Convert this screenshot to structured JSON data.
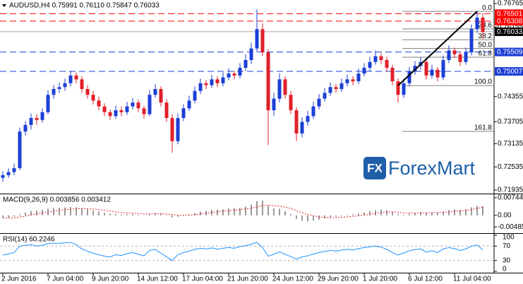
{
  "chart_data": {
    "type": "candlestick",
    "title": "AUDUSD,H4  0.75991 0.76110 0.75847 0.76033",
    "categories": [
      "2 Jun 2016",
      null,
      null,
      null,
      null,
      null,
      null,
      null,
      "7 Jun 04:00",
      null,
      null,
      null,
      null,
      null,
      null,
      null,
      "9 Jun 20:00",
      null,
      null,
      null,
      null,
      null,
      null,
      null,
      "14 Jun 12:00",
      null,
      null,
      null,
      null,
      null,
      null,
      null,
      "17 Jun 04:00",
      null,
      null,
      null,
      null,
      null,
      null,
      null,
      "21 Jun 20:00",
      null,
      null,
      null,
      null,
      null,
      null,
      null,
      "24 Jun 12:00",
      null,
      null,
      null,
      null,
      null,
      null,
      null,
      "29 Jun 20:00",
      null,
      null,
      null,
      null,
      null,
      null,
      null,
      "1 Jul 20:00",
      null,
      null,
      null,
      null,
      null,
      null,
      null,
      "6 Jul 12:00",
      null,
      null,
      null,
      null,
      null,
      null,
      null,
      "11 Jul 04:00",
      null,
      null,
      null,
      null,
      null
    ],
    "candles": [
      [
        0.7225,
        0.7242,
        0.7215,
        0.7232
      ],
      [
        0.7232,
        0.725,
        0.7225,
        0.724
      ],
      [
        0.724,
        0.7262,
        0.7232,
        0.725
      ],
      [
        0.725,
        0.7355,
        0.7245,
        0.7345
      ],
      [
        0.7345,
        0.7372,
        0.7335,
        0.7362
      ],
      [
        0.7362,
        0.7392,
        0.735,
        0.738
      ],
      [
        0.738,
        0.739,
        0.7362,
        0.7375
      ],
      [
        0.7375,
        0.7405,
        0.7368,
        0.7395
      ],
      [
        0.7395,
        0.7452,
        0.739,
        0.744
      ],
      [
        0.744,
        0.7465,
        0.743,
        0.7455
      ],
      [
        0.7455,
        0.7472,
        0.7445,
        0.746
      ],
      [
        0.746,
        0.7482,
        0.745,
        0.747
      ],
      [
        0.747,
        0.7502,
        0.7462,
        0.749
      ],
      [
        0.749,
        0.7498,
        0.747,
        0.748
      ],
      [
        0.748,
        0.7488,
        0.7445,
        0.7455
      ],
      [
        0.7455,
        0.7465,
        0.743,
        0.744
      ],
      [
        0.744,
        0.745,
        0.7415,
        0.7425
      ],
      [
        0.7425,
        0.7435,
        0.74,
        0.741
      ],
      [
        0.741,
        0.7418,
        0.7385,
        0.7395
      ],
      [
        0.7395,
        0.7402,
        0.7375,
        0.7385
      ],
      [
        0.7385,
        0.7412,
        0.7378,
        0.74
      ],
      [
        0.74,
        0.741,
        0.7385,
        0.7395
      ],
      [
        0.7395,
        0.7422,
        0.7388,
        0.741
      ],
      [
        0.741,
        0.7432,
        0.7402,
        0.742
      ],
      [
        0.742,
        0.7428,
        0.7395,
        0.7405
      ],
      [
        0.7405,
        0.7412,
        0.7378,
        0.739
      ],
      [
        0.739,
        0.7452,
        0.7385,
        0.744
      ],
      [
        0.744,
        0.7468,
        0.7432,
        0.7455
      ],
      [
        0.7455,
        0.7462,
        0.741,
        0.742
      ],
      [
        0.742,
        0.7428,
        0.737,
        0.738
      ],
      [
        0.738,
        0.739,
        0.729,
        0.732
      ],
      [
        0.732,
        0.7392,
        0.7312,
        0.738
      ],
      [
        0.738,
        0.7415,
        0.7372,
        0.7405
      ],
      [
        0.7405,
        0.7438,
        0.7398,
        0.7425
      ],
      [
        0.7425,
        0.7462,
        0.7418,
        0.745
      ],
      [
        0.745,
        0.7482,
        0.7442,
        0.747
      ],
      [
        0.747,
        0.7478,
        0.7455,
        0.7465
      ],
      [
        0.7465,
        0.7492,
        0.7458,
        0.748
      ],
      [
        0.748,
        0.7488,
        0.746,
        0.747
      ],
      [
        0.747,
        0.7498,
        0.7462,
        0.7485
      ],
      [
        0.7485,
        0.7508,
        0.7478,
        0.7495
      ],
      [
        0.7495,
        0.7502,
        0.748,
        0.749
      ],
      [
        0.749,
        0.7522,
        0.7482,
        0.751
      ],
      [
        0.751,
        0.7545,
        0.7502,
        0.753
      ],
      [
        0.753,
        0.7575,
        0.752,
        0.756
      ],
      [
        0.756,
        0.7662,
        0.7552,
        0.761
      ],
      [
        0.761,
        0.7625,
        0.754,
        0.755
      ],
      [
        0.755,
        0.7558,
        0.731,
        0.74
      ],
      [
        0.74,
        0.7445,
        0.7385,
        0.743
      ],
      [
        0.743,
        0.7495,
        0.742,
        0.748
      ],
      [
        0.748,
        0.7488,
        0.743,
        0.744
      ],
      [
        0.744,
        0.745,
        0.739,
        0.74
      ],
      [
        0.74,
        0.7408,
        0.732,
        0.734
      ],
      [
        0.734,
        0.7382,
        0.733,
        0.737
      ],
      [
        0.737,
        0.7398,
        0.736,
        0.7385
      ],
      [
        0.7385,
        0.7422,
        0.7378,
        0.741
      ],
      [
        0.741,
        0.7442,
        0.7402,
        0.743
      ],
      [
        0.743,
        0.7458,
        0.7422,
        0.7445
      ],
      [
        0.7445,
        0.7472,
        0.7438,
        0.746
      ],
      [
        0.746,
        0.7468,
        0.7445,
        0.7455
      ],
      [
        0.7455,
        0.7482,
        0.7448,
        0.747
      ],
      [
        0.747,
        0.7492,
        0.7462,
        0.748
      ],
      [
        0.748,
        0.7488,
        0.7465,
        0.7475
      ],
      [
        0.7475,
        0.7508,
        0.7468,
        0.7495
      ],
      [
        0.7495,
        0.7522,
        0.7488,
        0.751
      ],
      [
        0.751,
        0.7538,
        0.7502,
        0.7525
      ],
      [
        0.7525,
        0.7555,
        0.7518,
        0.754
      ],
      [
        0.754,
        0.7548,
        0.752,
        0.753
      ],
      [
        0.753,
        0.7538,
        0.75,
        0.751
      ],
      [
        0.751,
        0.7518,
        0.7465,
        0.7475
      ],
      [
        0.7475,
        0.7482,
        0.742,
        0.744
      ],
      [
        0.744,
        0.7482,
        0.7432,
        0.747
      ],
      [
        0.747,
        0.7512,
        0.7462,
        0.75
      ],
      [
        0.75,
        0.7528,
        0.7492,
        0.7515
      ],
      [
        0.7515,
        0.7538,
        0.7505,
        0.7525
      ],
      [
        0.7525,
        0.7532,
        0.748,
        0.749
      ],
      [
        0.749,
        0.7518,
        0.7482,
        0.7505
      ],
      [
        0.7505,
        0.7512,
        0.7475,
        0.7485
      ],
      [
        0.7485,
        0.7542,
        0.7478,
        0.753
      ],
      [
        0.753,
        0.7568,
        0.7522,
        0.7555
      ],
      [
        0.7555,
        0.7562,
        0.7535,
        0.7545
      ],
      [
        0.7545,
        0.7552,
        0.7515,
        0.7525
      ],
      [
        0.7525,
        0.7562,
        0.7518,
        0.755
      ],
      [
        0.755,
        0.7622,
        0.7542,
        0.761
      ],
      [
        0.761,
        0.7655,
        0.76,
        0.764
      ],
      [
        0.764,
        0.7651,
        0.7585,
        0.7603
      ]
    ],
    "up_color": "#1c3fd6",
    "down_color": "#e0202a",
    "ylim": [
      0.7188,
      0.768
    ],
    "yticks": [
      0.76765,
      0.76155,
      0.74355,
      0.73705,
      0.73135,
      0.72535,
      0.71935
    ],
    "levels": [
      {
        "value": 0.76501,
        "color": "#ff0000",
        "style": "dashed"
      },
      {
        "value": 0.76308,
        "color": "#ff0000",
        "style": "dashed"
      },
      {
        "value": 0.76033,
        "color": "#000000",
        "style": "solid"
      },
      {
        "value": 0.75509,
        "color": "#1c3fd6",
        "style": "dashed"
      },
      {
        "value": 0.75007,
        "color": "#1c3fd6",
        "style": "dashed"
      }
    ],
    "fibonacci": {
      "high": 0.7656,
      "low": 0.7464,
      "start": 70,
      "levels": [
        {
          "value": 0,
          "label": "0.0"
        },
        23.6,
        38.2,
        {
          "value": 50,
          "label": "50.0"
        },
        61.8,
        {
          "value": 100,
          "label": "100.0"
        },
        161.8
      ]
    },
    "trendline": {
      "x": [
        70,
        84
      ],
      "y": [
        0.7464,
        0.7656
      ]
    },
    "watermark": {
      "icon": "FX",
      "text": "ForexMart"
    },
    "macd": {
      "title": "MACD(9,26,9) 0.003856 0.003412",
      "ylim": [
        -0.0069,
        0.0086
      ],
      "yticks": [
        0.007445,
        {
          "value": 0,
          "label": "0.00"
        },
        -0.004855
      ],
      "hist_color": "#9a9a9a",
      "signal_color": "#e0202a",
      "histogram": [
        -0.001,
        -0.0008,
        -0.0005,
        0.0005,
        0.0012,
        0.0018,
        0.002,
        0.0023,
        0.0028,
        0.0031,
        0.0032,
        0.0033,
        0.0035,
        0.0034,
        0.003,
        0.0026,
        0.0021,
        0.0016,
        0.0011,
        0.0007,
        0.0006,
        0.0004,
        0.0004,
        0.0005,
        0.0003,
        0.0001,
        0.0006,
        0.001,
        0.0008,
        0.0002,
        -0.0008,
        -0.0006,
        -0.0002,
        0.0004,
        0.001,
        0.0016,
        0.0019,
        0.0023,
        0.0024,
        0.0026,
        0.0029,
        0.0029,
        0.0032,
        0.0037,
        0.0045,
        0.006,
        0.0062,
        0.004,
        0.003,
        0.0028,
        0.0018,
        0.0005,
        -0.0015,
        -0.0022,
        -0.0025,
        -0.0022,
        -0.0018,
        -0.0013,
        -0.0008,
        -0.0005,
        -0.0002,
        0.0002,
        0.0004,
        0.0008,
        0.0012,
        0.0017,
        0.0022,
        0.0024,
        0.0022,
        0.0015,
        0.0005,
        0.0003,
        0.0006,
        0.001,
        0.0014,
        0.0012,
        0.0013,
        0.0011,
        0.0016,
        0.0022,
        0.0025,
        0.0024,
        0.0027,
        0.0034,
        0.004,
        0.0039
      ],
      "signal": [
        -0.0012,
        -0.0011,
        -0.001,
        -0.0007,
        -0.0003,
        0.0002,
        0.0006,
        0.001,
        0.0014,
        0.0018,
        0.0021,
        0.0024,
        0.0026,
        0.0028,
        0.0029,
        0.0028,
        0.0027,
        0.0024,
        0.0021,
        0.0018,
        0.0015,
        0.0012,
        0.001,
        0.0009,
        0.0008,
        0.0006,
        0.0006,
        0.0007,
        0.0007,
        0.0006,
        0.0003,
        0.0001,
        0,
        0.0001,
        0.0003,
        0.0006,
        0.0009,
        0.0012,
        0.0015,
        0.0018,
        0.002,
        0.0022,
        0.0024,
        0.0027,
        0.003,
        0.0036,
        0.0041,
        0.0043,
        0.0041,
        0.0039,
        0.0035,
        0.0029,
        0.002,
        0.0011,
        0.0004,
        -0.0002,
        -0.0006,
        -0.0009,
        -0.001,
        -0.0009,
        -0.0008,
        -0.0006,
        -0.0004,
        -0.0002,
        0.0001,
        0.0004,
        0.0008,
        0.0011,
        0.0014,
        0.0015,
        0.0013,
        0.0011,
        0.001,
        0.001,
        0.0011,
        0.0011,
        0.0012,
        0.0012,
        0.0013,
        0.0015,
        0.0017,
        0.0019,
        0.0021,
        0.0024,
        0.003,
        0.0034
      ]
    },
    "rsi": {
      "title": "RSI(14) 60.2246",
      "ylim": [
        0,
        100
      ],
      "yticks": [
        100,
        70,
        30,
        0
      ],
      "color": "#1e90ff",
      "values": [
        45,
        48,
        52,
        70,
        72,
        74,
        70,
        72,
        77,
        78,
        78,
        79,
        80,
        74,
        62,
        56,
        50,
        46,
        42,
        40,
        46,
        44,
        49,
        52,
        47,
        43,
        58,
        61,
        50,
        40,
        30,
        46,
        52,
        56,
        61,
        64,
        62,
        65,
        61,
        64,
        66,
        64,
        68,
        71,
        75,
        80,
        66,
        42,
        47,
        54,
        47,
        41,
        34,
        40,
        43,
        48,
        52,
        55,
        58,
        56,
        59,
        61,
        59,
        63,
        66,
        68,
        70,
        67,
        61,
        52,
        45,
        51,
        57,
        60,
        62,
        53,
        57,
        52,
        62,
        66,
        63,
        58,
        62,
        70,
        73,
        60
      ]
    }
  }
}
